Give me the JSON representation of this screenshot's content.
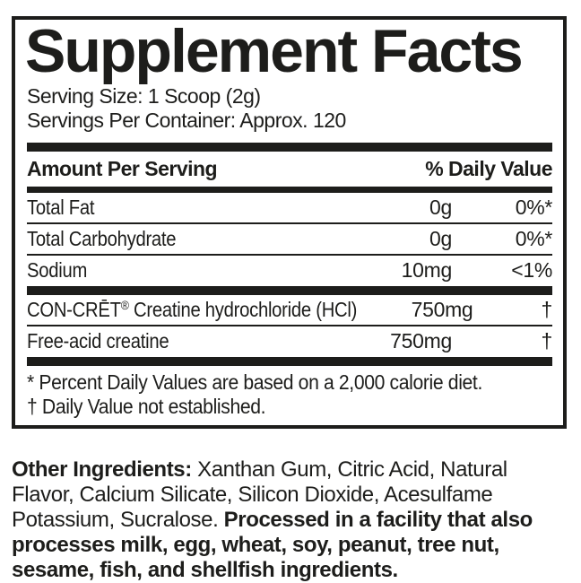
{
  "panel": {
    "title": "Supplement Facts",
    "serving_size": "Serving Size: 1 Scoop (2g)",
    "servings_per_container": "Servings Per Container: Approx. 120",
    "columns": {
      "amount_header": "Amount Per Serving",
      "dv_header": "% Daily Value"
    },
    "nutrients": [
      {
        "name": "Total Fat",
        "amount": "0g",
        "dv": "0%*"
      },
      {
        "name": "Total Carbohydrate",
        "amount": "0g",
        "dv": "0%*"
      },
      {
        "name": "Sodium",
        "amount": "10mg",
        "dv": "<1%"
      }
    ],
    "actives": [
      {
        "brand": "CON-CRĒT",
        "reg": "®",
        "name": " Creatine hydrochloride (HCl)",
        "amount": "750mg",
        "dv": "†"
      },
      {
        "name": "Free-acid creatine",
        "amount": "750mg",
        "dv": "†"
      }
    ],
    "footnotes": [
      "* Percent Daily Values are based on a 2,000 calorie diet.",
      "† Daily Value not established."
    ]
  },
  "other_ingredients": {
    "label": "Other Ingredients:",
    "list": " Xanthan Gum, Citric Acid, Natural Flavor, Calcium Silicate, Silicon Dioxide, Acesulfame Potassium, Sucralose. ",
    "allergen_notice": "Processed in a facility that also processes milk, egg, wheat, soy, peanut, tree nut, sesame, fish, and shellfish ingredients."
  },
  "colors": {
    "ink": "#1d1d1b",
    "background": "#ffffff"
  }
}
